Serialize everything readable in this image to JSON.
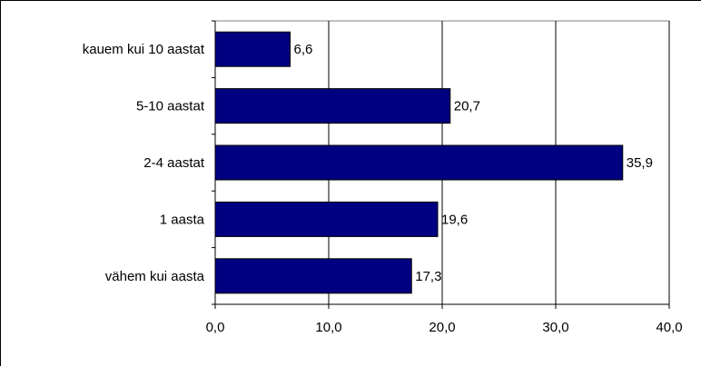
{
  "chart_data": {
    "type": "bar",
    "orientation": "horizontal",
    "categories": [
      "kauem kui 10 aastat",
      "5-10 aastat",
      "2-4 aastat",
      "1 aasta",
      "vähem kui aasta"
    ],
    "values": [
      6.6,
      20.7,
      35.9,
      19.6,
      17.3
    ],
    "value_labels": [
      "6,6",
      "20,7",
      "35,9",
      "19,6",
      "17,3"
    ],
    "xlim": [
      0,
      40
    ],
    "x_ticks": [
      0,
      10,
      20,
      30,
      40
    ],
    "x_tick_labels": [
      "0,0",
      "10,0",
      "20,0",
      "30,0",
      "40,0"
    ],
    "grid": "vertical",
    "title": "",
    "xlabel": "",
    "ylabel": "",
    "colors": {
      "bar": "#000080",
      "bar_stroke": "#000000",
      "grid": "#000000",
      "axis": "#808080"
    }
  }
}
